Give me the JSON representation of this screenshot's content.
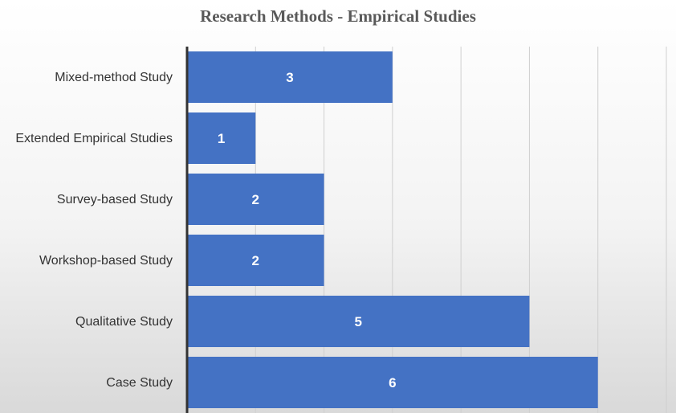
{
  "chart_data": {
    "type": "bar",
    "orientation": "horizontal",
    "title": "Research Methods - Empirical Studies",
    "xlabel": "",
    "ylabel": "",
    "categories": [
      "Mixed-method Study",
      "Extended Empirical Studies",
      "Survey-based Study",
      "Workshop-based Study",
      "Qualitative Study ",
      "Case Study "
    ],
    "values": [
      3,
      1,
      2,
      2,
      5,
      6
    ],
    "xlim": [
      0,
      7
    ],
    "grid": true,
    "data_labels": true,
    "legend": "none",
    "bar_color": "#4472C4"
  }
}
